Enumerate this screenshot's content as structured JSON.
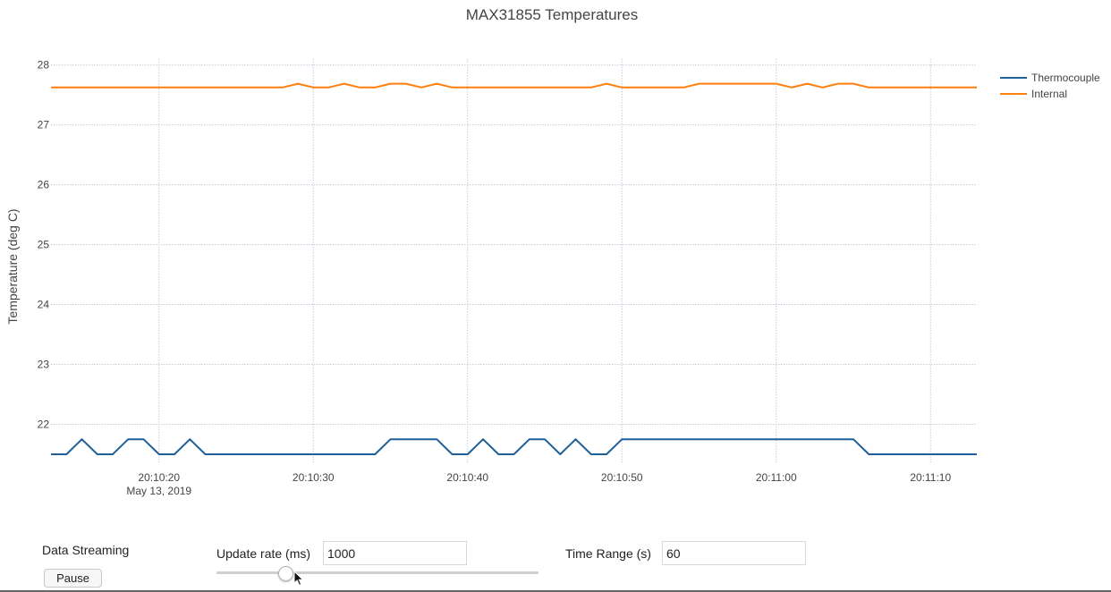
{
  "chart_data": {
    "type": "line",
    "title": "MAX31855 Temperatures",
    "xlabel": "",
    "ylabel": "Temperature (deg C)",
    "ylim": [
      21.35,
      28.1
    ],
    "yticks": [
      22,
      23,
      24,
      25,
      26,
      27,
      28
    ],
    "xlim": [
      "2019-05-13 20:10:13",
      "2019-05-13 20:11:13"
    ],
    "xticks": [
      {
        "x": "2019-05-13 20:10:20",
        "label": "20:10:20",
        "sublabel": "May 13, 2019"
      },
      {
        "x": "2019-05-13 20:10:30",
        "label": "20:10:30",
        "sublabel": ""
      },
      {
        "x": "2019-05-13 20:10:40",
        "label": "20:10:40",
        "sublabel": ""
      },
      {
        "x": "2019-05-13 20:10:50",
        "label": "20:10:50",
        "sublabel": ""
      },
      {
        "x": "2019-05-13 20:11:00",
        "label": "20:11:00",
        "sublabel": ""
      },
      {
        "x": "2019-05-13 20:11:10",
        "label": "20:11:10",
        "sublabel": ""
      }
    ],
    "grid": true,
    "legend_position": "top-right",
    "x": [
      "20:10:13",
      "20:10:14",
      "20:10:15",
      "20:10:16",
      "20:10:17",
      "20:10:18",
      "20:10:19",
      "20:10:20",
      "20:10:21",
      "20:10:22",
      "20:10:23",
      "20:10:24",
      "20:10:25",
      "20:10:26",
      "20:10:27",
      "20:10:28",
      "20:10:29",
      "20:10:30",
      "20:10:31",
      "20:10:32",
      "20:10:33",
      "20:10:34",
      "20:10:35",
      "20:10:36",
      "20:10:37",
      "20:10:38",
      "20:10:39",
      "20:10:40",
      "20:10:41",
      "20:10:42",
      "20:10:43",
      "20:10:44",
      "20:10:45",
      "20:10:46",
      "20:10:47",
      "20:10:48",
      "20:10:49",
      "20:10:50",
      "20:10:51",
      "20:10:52",
      "20:10:53",
      "20:10:54",
      "20:10:55",
      "20:10:56",
      "20:10:57",
      "20:10:58",
      "20:10:59",
      "20:11:00",
      "20:11:01",
      "20:11:02",
      "20:11:03",
      "20:11:04",
      "20:11:05",
      "20:11:06",
      "20:11:07",
      "20:11:08",
      "20:11:09",
      "20:11:10",
      "20:11:11",
      "20:11:12",
      "20:11:13"
    ],
    "series": [
      {
        "name": "Thermocouple",
        "color": "#1f5f9a",
        "values": [
          21.5,
          21.5,
          21.75,
          21.5,
          21.5,
          21.75,
          21.75,
          21.5,
          21.5,
          21.75,
          21.5,
          21.5,
          21.5,
          21.5,
          21.5,
          21.5,
          21.5,
          21.5,
          21.5,
          21.5,
          21.5,
          21.5,
          21.75,
          21.75,
          21.75,
          21.75,
          21.5,
          21.5,
          21.75,
          21.5,
          21.5,
          21.75,
          21.75,
          21.5,
          21.75,
          21.5,
          21.5,
          21.75,
          21.75,
          21.75,
          21.75,
          21.75,
          21.75,
          21.75,
          21.75,
          21.75,
          21.75,
          21.75,
          21.75,
          21.75,
          21.75,
          21.75,
          21.75,
          21.5,
          21.5,
          21.5,
          21.5,
          21.5,
          21.5,
          21.5,
          21.5
        ]
      },
      {
        "name": "Internal",
        "color": "#ff7f0e",
        "values": [
          27.625,
          27.625,
          27.625,
          27.625,
          27.625,
          27.625,
          27.625,
          27.625,
          27.625,
          27.625,
          27.625,
          27.625,
          27.625,
          27.625,
          27.625,
          27.625,
          27.6875,
          27.625,
          27.625,
          27.6875,
          27.625,
          27.625,
          27.6875,
          27.6875,
          27.625,
          27.6875,
          27.625,
          27.625,
          27.625,
          27.625,
          27.625,
          27.625,
          27.625,
          27.625,
          27.625,
          27.625,
          27.6875,
          27.625,
          27.625,
          27.625,
          27.625,
          27.625,
          27.6875,
          27.6875,
          27.6875,
          27.6875,
          27.6875,
          27.6875,
          27.625,
          27.6875,
          27.625,
          27.6875,
          27.6875,
          27.625,
          27.625,
          27.625,
          27.625,
          27.625,
          27.625,
          27.625,
          27.625
        ]
      }
    ]
  },
  "controls": {
    "streaming_label": "Data Streaming",
    "pause_label": "Pause",
    "update_rate_label": "Update rate (ms)",
    "update_rate_value": "1000",
    "update_rate_slider_fraction": 0.2,
    "time_range_label": "Time Range (s)",
    "time_range_value": "60"
  }
}
